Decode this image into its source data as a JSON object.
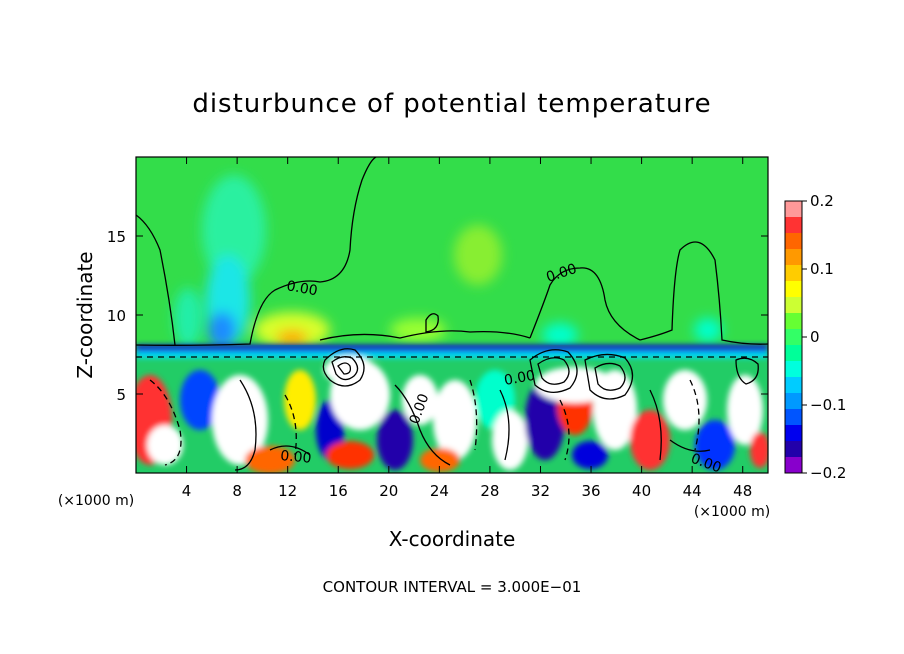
{
  "chart_data": {
    "type": "heatmap",
    "title": "disturbunce of potential temperature",
    "xlabel": "X-coordinate",
    "ylabel": "Z-coordinate",
    "x_unit": "(×1000 m)",
    "y_unit": "(×1000 m)",
    "xlim": [
      0,
      50
    ],
    "ylim": [
      0,
      20
    ],
    "x_ticks": [
      4,
      8,
      12,
      16,
      20,
      24,
      28,
      32,
      36,
      40,
      44,
      48
    ],
    "y_ticks": [
      5,
      10,
      15
    ],
    "colorbar": {
      "range": [
        -0.2,
        0.2
      ],
      "tick_values": [
        0.2,
        0.1,
        0,
        -0.1,
        -0.2
      ],
      "tick_labels": [
        "0.2",
        "0.1",
        "0",
        "−0.1",
        "−0.2"
      ],
      "colors": [
        "#ff9999",
        "#ff3333",
        "#ff6600",
        "#ff9900",
        "#ffcc00",
        "#ffff00",
        "#ccff33",
        "#66ff33",
        "#33ff66",
        "#00ff99",
        "#00ffdd",
        "#00ccff",
        "#0099ff",
        "#0055ff",
        "#0000ee",
        "#2200aa",
        "#8800cc"
      ]
    },
    "contour_labels": [
      "0.00",
      "0.00",
      "0.00",
      "0.00",
      "0.00",
      "0.00"
    ],
    "contour_interval_text": "CONTOUR INTERVAL = 3.000E−01"
  }
}
